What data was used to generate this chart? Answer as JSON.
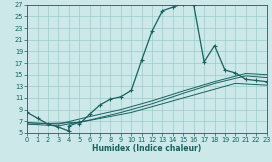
{
  "xlabel": "Humidex (Indice chaleur)",
  "bg_color": "#cce8e8",
  "grid_color": "#99cccc",
  "line_color": "#1a6060",
  "xlim": [
    0,
    23
  ],
  "ylim": [
    5,
    27
  ],
  "xticks": [
    0,
    1,
    2,
    3,
    4,
    5,
    6,
    7,
    8,
    9,
    10,
    11,
    12,
    13,
    14,
    15,
    16,
    17,
    18,
    19,
    20,
    21,
    22,
    23
  ],
  "yticks": [
    5,
    7,
    9,
    11,
    13,
    15,
    17,
    19,
    21,
    23,
    25,
    27
  ],
  "main_x": [
    0,
    1,
    2,
    3,
    4,
    4,
    5,
    5,
    6,
    7,
    8,
    9,
    10,
    11,
    12,
    13,
    14,
    15,
    15,
    16,
    16,
    17,
    18,
    19,
    20,
    21,
    22,
    23
  ],
  "main_y": [
    8.5,
    7.5,
    6.5,
    6.0,
    5.3,
    6.2,
    6.8,
    6.5,
    8.2,
    9.8,
    10.8,
    11.2,
    12.3,
    17.5,
    22.5,
    26.0,
    26.6,
    27.2,
    27.4,
    27.2,
    27.0,
    17.2,
    20.0,
    15.8,
    15.3,
    14.2,
    14.0,
    13.8
  ],
  "line2_x": [
    0,
    3,
    6,
    9,
    12,
    15,
    18,
    21,
    23
  ],
  "line2_y": [
    6.8,
    6.5,
    7.8,
    9.0,
    10.5,
    12.2,
    13.8,
    15.2,
    15.0
  ],
  "line3_x": [
    0,
    3,
    6,
    9,
    12,
    15,
    18,
    21,
    23
  ],
  "line3_y": [
    6.5,
    6.2,
    7.2,
    8.5,
    10.0,
    11.8,
    13.5,
    14.8,
    14.5
  ],
  "line4_x": [
    0,
    5,
    10,
    15,
    20,
    23
  ],
  "line4_y": [
    6.5,
    6.8,
    8.5,
    11.0,
    13.5,
    13.2
  ]
}
